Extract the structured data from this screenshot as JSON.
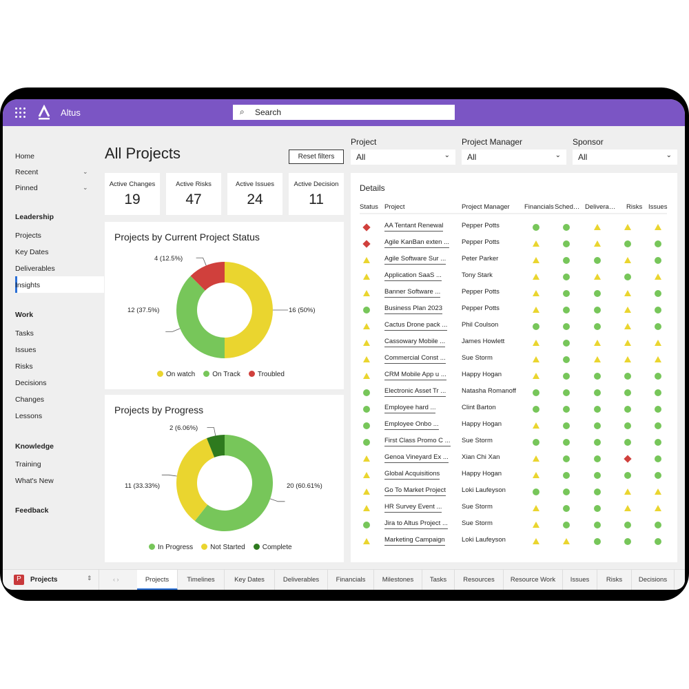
{
  "app": {
    "name": "Altus",
    "search_placeholder": "Search"
  },
  "sidebar": {
    "items": [
      {
        "label": "Home",
        "y": 0
      },
      {
        "label": "Recent",
        "chev": true
      },
      {
        "label": "Pinned",
        "chev": true
      },
      {
        "label": "Leadership",
        "heading": true
      },
      {
        "label": "Projects"
      },
      {
        "label": "Key Dates"
      },
      {
        "label": "Deliverables"
      },
      {
        "label": "Insights",
        "selected": true
      },
      {
        "label": "Work",
        "heading": true
      },
      {
        "label": "Tasks"
      },
      {
        "label": "Issues"
      },
      {
        "label": "Risks"
      },
      {
        "label": "Decisions"
      },
      {
        "label": "Changes"
      },
      {
        "label": "Lessons"
      },
      {
        "label": "Knowledge",
        "heading": true
      },
      {
        "label": "Training"
      },
      {
        "label": "What's New"
      },
      {
        "label": "Feedback",
        "heading": true
      }
    ]
  },
  "page": {
    "title": "All Projects",
    "reset_label": "Reset filters"
  },
  "filters": [
    {
      "label": "Project",
      "value": "All"
    },
    {
      "label": "Project Manager",
      "value": "All"
    },
    {
      "label": "Sponsor",
      "value": "All"
    }
  ],
  "kpis": [
    {
      "label": "Active Changes",
      "value": "19"
    },
    {
      "label": "Active Risks",
      "value": "47"
    },
    {
      "label": "Active Issues",
      "value": "24"
    },
    {
      "label": "Active Decision",
      "value": "11"
    }
  ],
  "chart_data": [
    {
      "type": "pie",
      "donut": true,
      "title": "Projects by Current Project Status",
      "slices": [
        {
          "name": "On watch",
          "value": 16,
          "label": "16 (50%)",
          "color": "#ead52f"
        },
        {
          "name": "On Track",
          "value": 12,
          "label": "12 (37.5%)",
          "color": "#77c65a"
        },
        {
          "name": "Troubled",
          "value": 4,
          "label": "4 (12.5%)",
          "color": "#d0403c"
        }
      ],
      "legend": "bottom"
    },
    {
      "type": "pie",
      "donut": true,
      "title": "Projects by Progress",
      "slices": [
        {
          "name": "In Progress",
          "value": 20,
          "label": "20 (60.61%)",
          "color": "#77c65a"
        },
        {
          "name": "Not Started",
          "value": 11,
          "label": "11 (33.33%)",
          "color": "#ead52f"
        },
        {
          "name": "Complete",
          "value": 2,
          "label": "2 (6.06%)",
          "color": "#2e7a1e"
        }
      ],
      "legend": "bottom"
    }
  ],
  "details": {
    "title": "Details",
    "columns": [
      "Status",
      "Project",
      "Project Manager",
      "Financials",
      "Sched…",
      "Delivera…",
      "Risks",
      "Issues"
    ],
    "legend_codes": {
      "g": "green-circle",
      "y": "yellow-triangle",
      "r": "red-diamond"
    },
    "rows": [
      {
        "project": "AA Tentant Renewal",
        "pm": "Pepper Potts",
        "s": "rggyyy"
      },
      {
        "project": "Agile KanBan exten ...",
        "pm": "Pepper Potts",
        "s": "rygygg"
      },
      {
        "project": "Agile Software Sur ...",
        "pm": "Peter Parker",
        "s": "yyggyg"
      },
      {
        "project": "Application SaaS ...",
        "pm": "Tony Stark",
        "s": "yygygy"
      },
      {
        "project": "Banner Software ...",
        "pm": "Pepper Potts",
        "s": "yyggyg"
      },
      {
        "project": "Business Plan 2023",
        "pm": "Pepper Potts",
        "s": "gyggyg"
      },
      {
        "project": "Cactus Drone pack ...",
        "pm": "Phil Coulson",
        "s": "ygggyg"
      },
      {
        "project": "Cassowary Mobile ...",
        "pm": "James Howlett",
        "s": "yygyyy"
      },
      {
        "project": "Commercial Const ...",
        "pm": "Sue Storm",
        "s": "yygyyy"
      },
      {
        "project": "CRM Mobile App u ...",
        "pm": "Happy Hogan",
        "s": "yygggg"
      },
      {
        "project": "Electronic Asset Tr ...",
        "pm": "Natasha Romanoff",
        "s": "gggggg"
      },
      {
        "project": "Employee hard ...",
        "pm": "Clint Barton",
        "s": "gggggg"
      },
      {
        "project": "Employee Onbo ...",
        "pm": "Happy Hogan",
        "s": "gygggg"
      },
      {
        "project": "First Class Promo C ...",
        "pm": "Sue Storm",
        "s": "gggggg"
      },
      {
        "project": "Genoa Vineyard Ex ...",
        "pm": "Xian Chi Xan",
        "s": "yyggrg"
      },
      {
        "project": "Global Acquisitions",
        "pm": "Happy Hogan",
        "s": "yygggg"
      },
      {
        "project": "Go To Market Project",
        "pm": "Loki Laufeyson",
        "s": "ygggyy"
      },
      {
        "project": "HR Survey Event ...",
        "pm": "Sue Storm",
        "s": "yyggyy"
      },
      {
        "project": "Jira to Altus Project ...",
        "pm": "Sue Storm",
        "s": "gygggg"
      },
      {
        "project": "Marketing Campaign",
        "pm": "Loki Laufeyson",
        "s": "yyyggg"
      }
    ]
  },
  "bottom": {
    "app_label": "Projects",
    "app_initial": "P",
    "tabs": [
      "Projects",
      "Timelines",
      "Key Dates",
      "Deliverables",
      "Financials",
      "Milestones",
      "Tasks",
      "Resources",
      "Resource Work",
      "Issues",
      "Risks",
      "Decisions"
    ],
    "active_tab": "Projects"
  }
}
